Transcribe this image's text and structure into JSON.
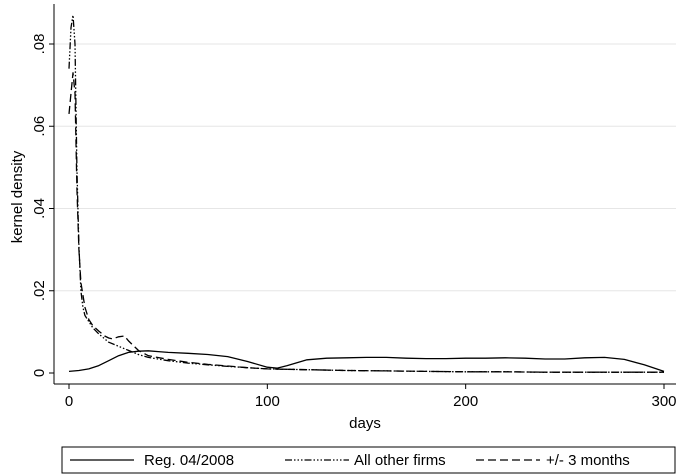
{
  "chart_data": {
    "type": "line",
    "title": "",
    "xlabel": "days",
    "ylabel": "kernel density",
    "xlim": [
      0,
      300
    ],
    "ylim": [
      0,
      0.088
    ],
    "xticks": [
      {
        "value": 0,
        "label": "0"
      },
      {
        "value": 100,
        "label": "100"
      },
      {
        "value": 200,
        "label": "200"
      },
      {
        "value": 300,
        "label": "300"
      }
    ],
    "yticks": [
      {
        "value": 0,
        "label": "0"
      },
      {
        "value": 0.02,
        "label": ".02"
      },
      {
        "value": 0.04,
        "label": ".04"
      },
      {
        "value": 0.06,
        "label": ".06"
      },
      {
        "value": 0.08,
        "label": ".08"
      }
    ],
    "grid": "horizontal",
    "legend_position": "bottom",
    "series": [
      {
        "name": "Reg. 04/2008",
        "style": "solid",
        "x": [
          0,
          5,
          10,
          15,
          20,
          25,
          30,
          35,
          40,
          45,
          50,
          60,
          70,
          80,
          90,
          100,
          105,
          110,
          120,
          130,
          140,
          150,
          160,
          170,
          180,
          190,
          200,
          210,
          220,
          230,
          240,
          250,
          260,
          270,
          280,
          290,
          300
        ],
        "y": [
          0.0004,
          0.0006,
          0.001,
          0.0018,
          0.003,
          0.0042,
          0.005,
          0.0053,
          0.0054,
          0.0052,
          0.005,
          0.0048,
          0.0045,
          0.004,
          0.0028,
          0.0014,
          0.0012,
          0.0018,
          0.0032,
          0.0036,
          0.0037,
          0.0038,
          0.0038,
          0.0036,
          0.0035,
          0.0035,
          0.0036,
          0.0036,
          0.0037,
          0.0036,
          0.0034,
          0.0034,
          0.0037,
          0.0038,
          0.0033,
          0.002,
          0.0004
        ]
      },
      {
        "name": "All other firms",
        "style": "dashdot",
        "x": [
          0,
          1,
          2,
          3,
          4,
          5,
          6,
          7,
          8,
          10,
          12,
          15,
          18,
          20,
          25,
          30,
          35,
          40,
          50,
          60,
          70,
          80,
          90,
          100,
          120,
          140,
          160,
          180,
          200,
          220,
          240,
          260,
          280,
          300
        ],
        "y": [
          0.074,
          0.084,
          0.087,
          0.08,
          0.05,
          0.031,
          0.02,
          0.016,
          0.014,
          0.0125,
          0.011,
          0.0095,
          0.0083,
          0.0075,
          0.0065,
          0.0055,
          0.0045,
          0.0038,
          0.003,
          0.0024,
          0.002,
          0.0016,
          0.0013,
          0.001,
          0.0008,
          0.0006,
          0.0005,
          0.0004,
          0.0003,
          0.0003,
          0.0002,
          0.0002,
          0.0002,
          0.0002
        ]
      },
      {
        "name": "+/- 3 months",
        "style": "dashed",
        "x": [
          0,
          1,
          2,
          3,
          4,
          5,
          6,
          8,
          10,
          12,
          15,
          18,
          20,
          22,
          25,
          28,
          30,
          35,
          40,
          50,
          60,
          70,
          80,
          90,
          100,
          120,
          140,
          160,
          180,
          200,
          220,
          240,
          260,
          280,
          300
        ],
        "y": [
          0.063,
          0.068,
          0.073,
          0.068,
          0.045,
          0.03,
          0.022,
          0.016,
          0.013,
          0.0115,
          0.0102,
          0.009,
          0.0085,
          0.0083,
          0.0088,
          0.009,
          0.0078,
          0.0055,
          0.0042,
          0.0033,
          0.0026,
          0.0021,
          0.0017,
          0.0013,
          0.001,
          0.0008,
          0.0006,
          0.0005,
          0.0004,
          0.0003,
          0.0003,
          0.0002,
          0.0002,
          0.0002,
          0.0002
        ]
      }
    ]
  }
}
